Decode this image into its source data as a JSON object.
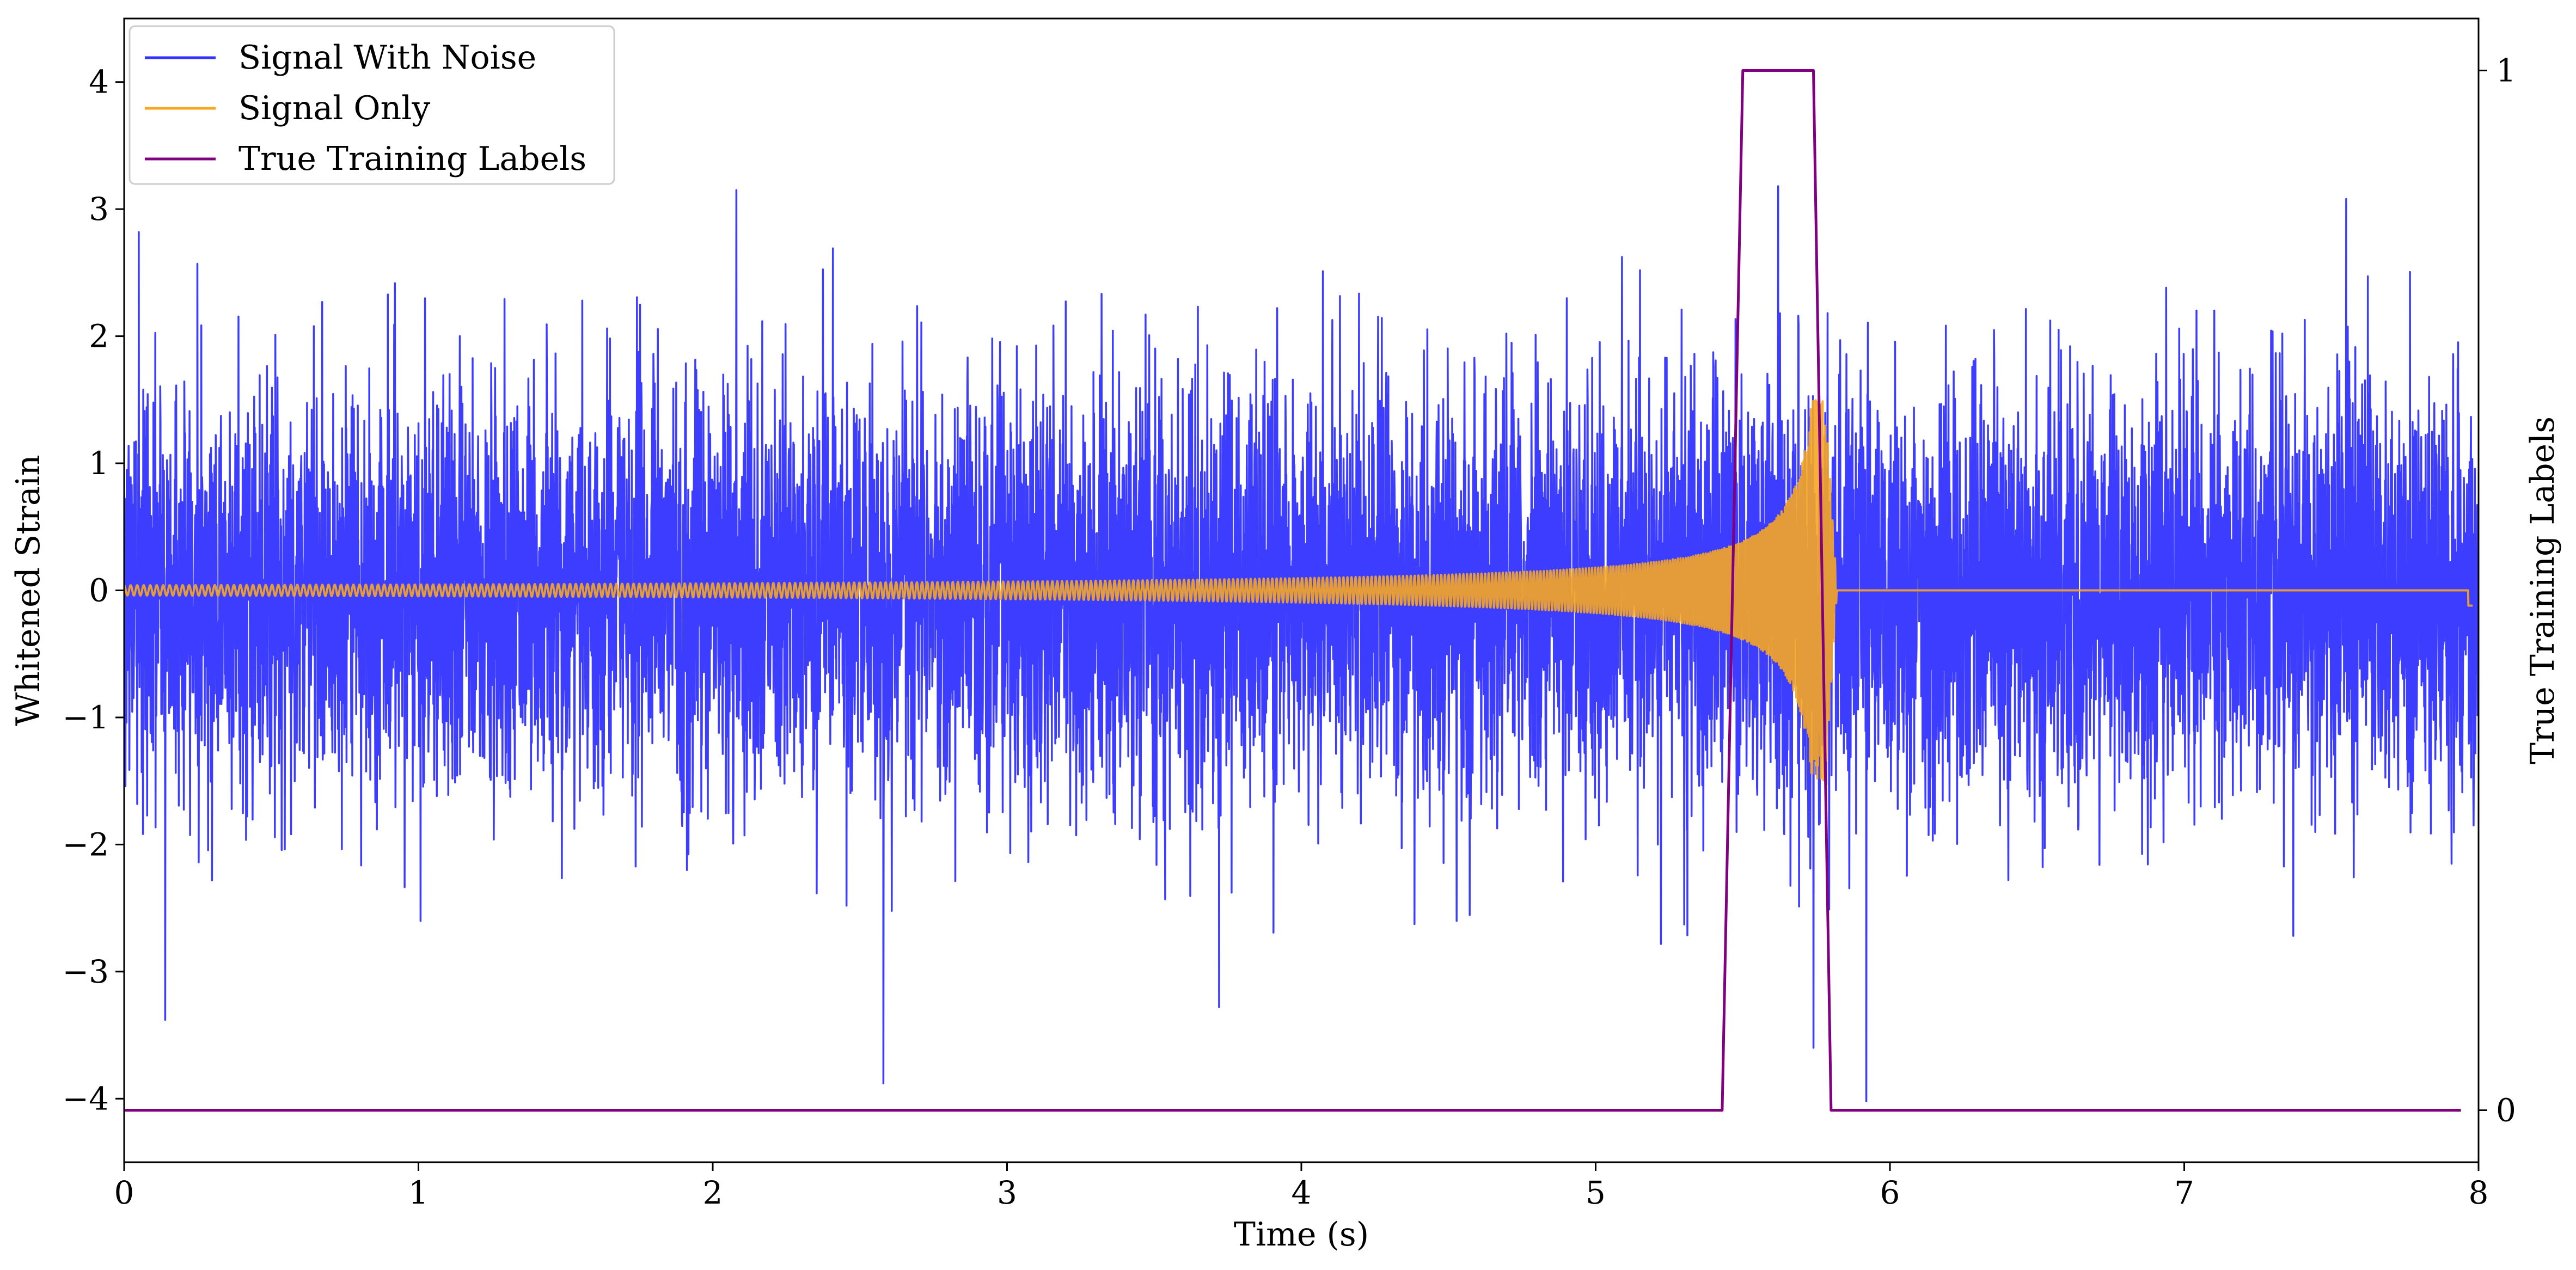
{
  "chart_data": {
    "type": "line",
    "xlabel": "Time (s)",
    "ylabel": "Whitened Strain",
    "y2label": "True Training Labels",
    "xlim": [
      0,
      8
    ],
    "ylim": [
      -4.5,
      4.5
    ],
    "y2lim": [
      -0.05,
      1.05
    ],
    "x_ticks": [
      0,
      1,
      2,
      3,
      4,
      5,
      6,
      7,
      8
    ],
    "y_ticks": [
      {
        "value": -4,
        "label": "−4"
      },
      {
        "value": -3,
        "label": "−3"
      },
      {
        "value": -2,
        "label": "−2"
      },
      {
        "value": -1,
        "label": "−1"
      },
      {
        "value": 0,
        "label": "0"
      },
      {
        "value": 1,
        "label": "1"
      },
      {
        "value": 2,
        "label": "2"
      },
      {
        "value": 3,
        "label": "3"
      },
      {
        "value": 4,
        "label": "4"
      }
    ],
    "y2_ticks": [
      {
        "value": 0,
        "label": "0"
      },
      {
        "value": 1,
        "label": "1"
      }
    ],
    "legend_position": "top-left",
    "grid": false,
    "series": [
      {
        "name": "Signal With Noise",
        "axis": "left",
        "color": "#3333ff",
        "kind": "noise",
        "x_range": [
          0,
          8
        ],
        "typical_abs_max": 2.5,
        "extremes": [
          {
            "x": 0.05,
            "y": 2.82
          },
          {
            "x": 0.14,
            "y": -3.38
          },
          {
            "x": 2.08,
            "y": 3.15
          },
          {
            "x": 2.58,
            "y": -3.88
          },
          {
            "x": 3.72,
            "y": -3.28
          },
          {
            "x": 5.62,
            "y": 3.18
          },
          {
            "x": 5.74,
            "y": -3.6
          },
          {
            "x": 5.92,
            "y": -4.02
          },
          {
            "x": 7.55,
            "y": 3.08
          }
        ]
      },
      {
        "name": "Signal Only",
        "axis": "left",
        "color": "#f5a623",
        "kind": "chirp",
        "x_range": [
          0,
          7.98
        ],
        "start_amplitude": 0.04,
        "peak_amplitude": 1.5,
        "merger_time": 5.78,
        "ringdown_end": 5.82,
        "tail_end_value": -0.12
      },
      {
        "name": "True Training Labels",
        "axis": "right",
        "color": "#800080",
        "kind": "step",
        "x": [
          0.0,
          5.43,
          5.5,
          5.74,
          5.8,
          7.94
        ],
        "y": [
          0,
          0,
          1,
          1,
          0,
          0
        ]
      }
    ]
  }
}
